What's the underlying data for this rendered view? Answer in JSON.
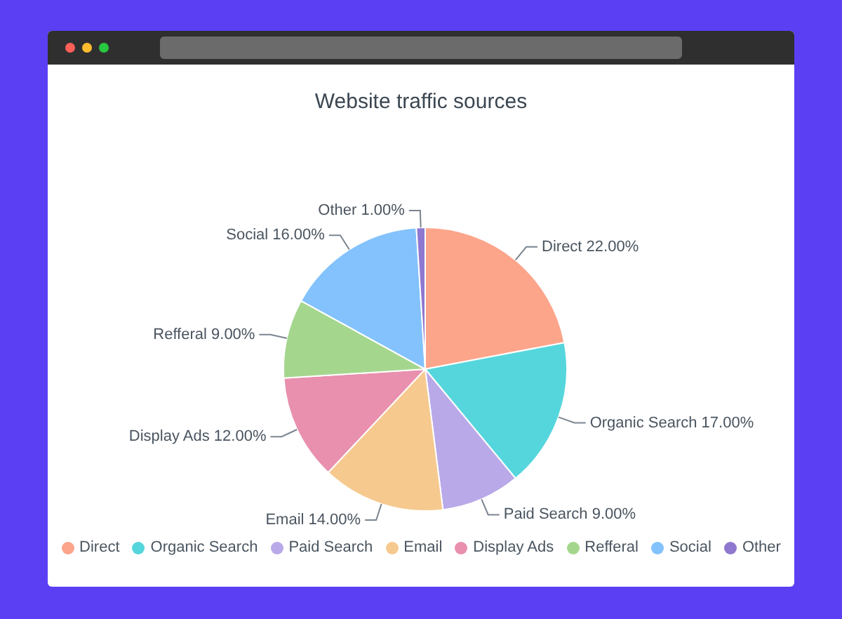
{
  "chart_data": {
    "type": "pie",
    "title": "Website traffic sources",
    "categories": [
      "Direct",
      "Organic Search",
      "Paid Search",
      "Email",
      "Display Ads",
      "Refferal",
      "Social",
      "Other"
    ],
    "values": [
      22,
      17,
      9,
      14,
      12,
      9,
      16,
      1
    ],
    "value_labels": [
      "22.00%",
      "17.00%",
      "9.00%",
      "14.00%",
      "12.00%",
      "9.00%",
      "16.00%",
      "1.00%"
    ],
    "colors": [
      "#fca58a",
      "#55d6dc",
      "#b9a9e8",
      "#f6c98f",
      "#e890ad",
      "#a5d68e",
      "#83c2fc",
      "#8f78d0"
    ],
    "legend": "bottom"
  }
}
